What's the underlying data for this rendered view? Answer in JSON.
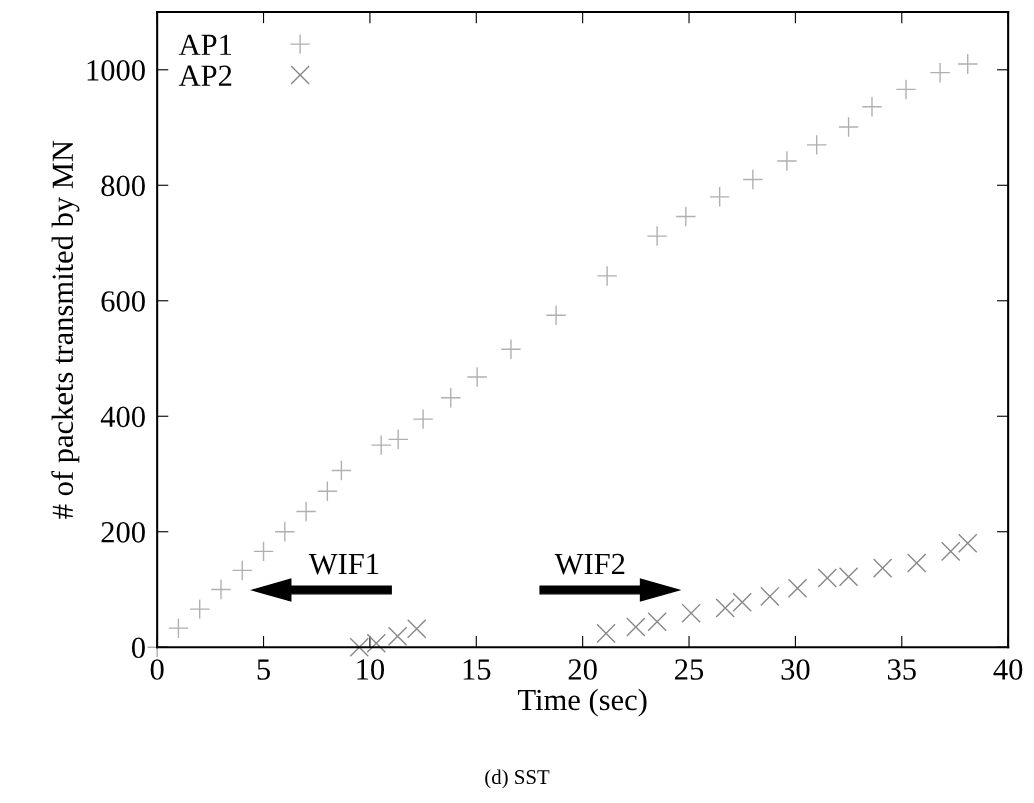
{
  "chart_data": {
    "type": "scatter",
    "xlabel": "Time (sec)",
    "ylabel": "# of packets transmited by MN",
    "xlim": [
      0,
      40
    ],
    "xticks": [
      0,
      5,
      10,
      15,
      20,
      25,
      30,
      35,
      40
    ],
    "ylim": [
      0,
      1100
    ],
    "yticks": [
      0,
      200,
      400,
      600,
      800,
      1000
    ],
    "grid": false,
    "legend": "top left",
    "series": [
      {
        "name": "AP1",
        "color": "#b0b0b0",
        "marker": "cross",
        "x": [
          0,
          1,
          2,
          3,
          4,
          5,
          6,
          7,
          8,
          8.66,
          10.53,
          11.33,
          12.5,
          13.8,
          15.04,
          16.63,
          18.75,
          21.15,
          23.5,
          24.85,
          26.44,
          28,
          29.6,
          31,
          32.5,
          33.6,
          35.2,
          36.8,
          38.1
        ],
        "values": [
          0,
          33,
          66,
          100,
          133,
          166,
          200,
          235,
          270,
          306,
          350,
          360,
          395,
          432,
          468,
          516,
          575,
          643,
          712,
          746,
          780,
          810,
          842,
          870,
          901,
          936,
          966,
          995,
          1010
        ]
      },
      {
        "name": "AP2",
        "color": "#888888",
        "marker": "x",
        "x": [
          9.5,
          10.3,
          11.3,
          12.2,
          21.1,
          22.5,
          23.5,
          25.1,
          26.7,
          27.5,
          28.8,
          30.1,
          31.5,
          32.5,
          34.1,
          35.7,
          37.3,
          38.1
        ],
        "values": [
          0,
          7,
          19,
          32,
          24,
          35,
          44,
          59,
          68,
          78,
          88,
          102,
          120,
          122,
          137,
          146,
          166,
          180
        ]
      }
    ],
    "annotations": [
      "WIF1",
      "WIF2",
      "(d) SST"
    ]
  }
}
